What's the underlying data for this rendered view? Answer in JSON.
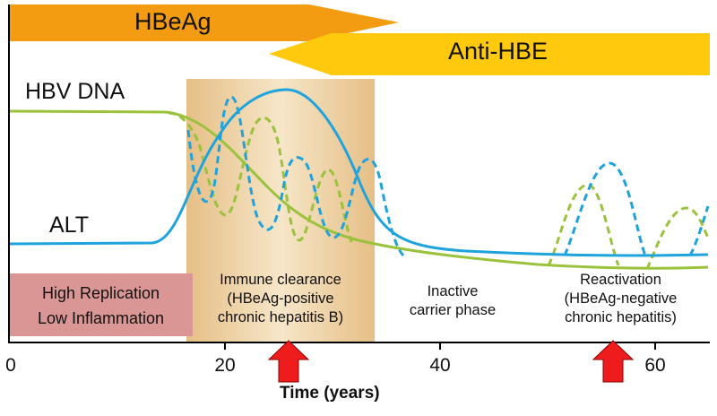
{
  "bars": {
    "hbeag": {
      "label": "HBeAg",
      "color": "#f39c12"
    },
    "anti_hbe": {
      "label": "Anti-HBE",
      "color": "#ffc90e"
    }
  },
  "curve_labels": {
    "hbv_dna": "HBV DNA",
    "alt": "ALT"
  },
  "phases": {
    "high_replication": {
      "line1": "High Replication",
      "line2": "Low Inflammation",
      "color": "#d99694"
    },
    "immune_clearance": {
      "line1": "Immune clearance",
      "line2": "(HBeAg-positive",
      "line3": "chronic hepatitis B)"
    },
    "inactive": {
      "line1": "Inactive",
      "line2": "carrier phase"
    },
    "reactivation": {
      "line1": "Reactivation",
      "line2": "(HBeAg-negative",
      "line3": "chronic hepatitis)"
    }
  },
  "axis": {
    "xlabel": "Time (years)",
    "ticks": [
      "0",
      "20",
      "40",
      "60"
    ],
    "xlim": [
      0,
      65
    ]
  },
  "colors": {
    "hbv_dna": "#1ea3dc",
    "alt": "#9bc23c",
    "arrow": "#ee1c1c",
    "highlight": "#f3dcb4"
  },
  "arrows": [
    25.5,
    56
  ]
}
